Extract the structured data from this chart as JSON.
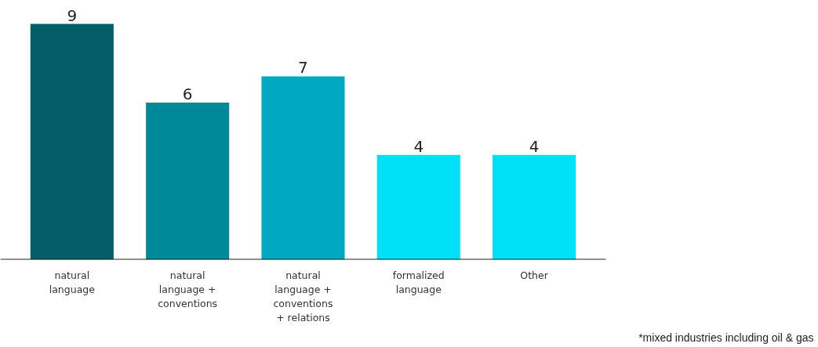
{
  "chart_data": {
    "type": "bar",
    "categories": [
      "natural language",
      "natural language + conventions",
      "natural language + conventions + relations",
      "formalized language",
      "Other"
    ],
    "values": [
      9,
      6,
      7,
      4,
      4
    ],
    "colors": [
      "#035e6a",
      "#008a99",
      "#00a9c0",
      "#00e1f7",
      "#00e1f7"
    ],
    "data_labels": true,
    "grid": false,
    "annotations": [
      "*mixed industries including oil & gas"
    ]
  }
}
